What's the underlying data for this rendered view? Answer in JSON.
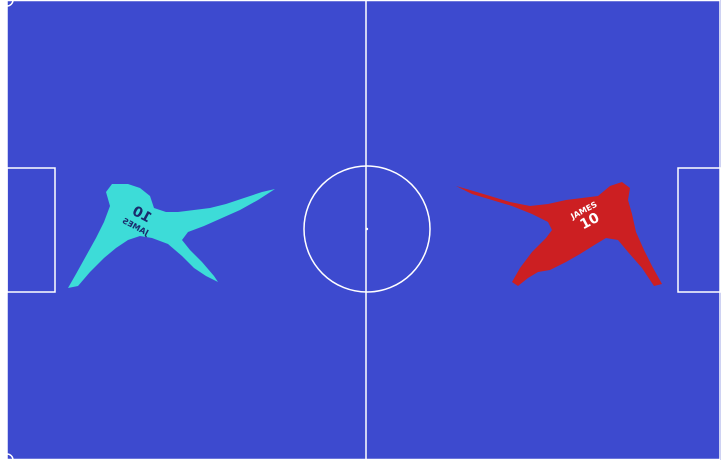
{
  "colors": {
    "pitch": "#3d4acf",
    "lines": "#ffffff",
    "background": "#ffffff",
    "team_left": "#3ddcd8",
    "team_right": "#cc1f22",
    "jersey_text_left": "#1a2a6c",
    "jersey_text_right": "#ffffff"
  },
  "players": {
    "left": {
      "name": "JAMES",
      "number": "10",
      "orientation": "mirrored, facing left side of pitch"
    },
    "right": {
      "name": "JAMES",
      "number": "10",
      "orientation": "kicking toward centre"
    }
  },
  "pitch_markings": [
    "boundary",
    "halfway-line",
    "centre-circle",
    "centre-spot",
    "left-goal-box",
    "right-goal-box",
    "corner-arcs"
  ]
}
